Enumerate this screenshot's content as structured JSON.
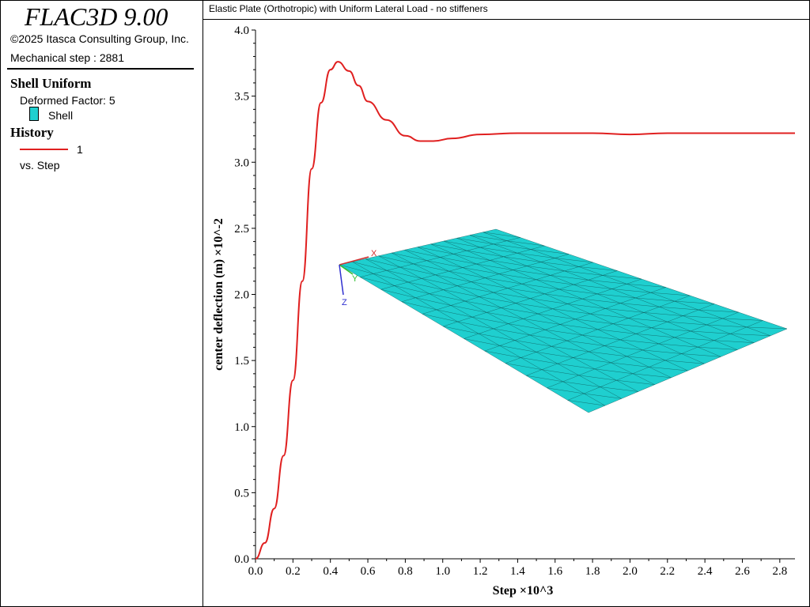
{
  "app": {
    "title": "FLAC3D 9.00",
    "copyright": "©2025 Itasca Consulting Group, Inc.",
    "step_text": "Mechanical step : 2881"
  },
  "legend": {
    "shell_section": "Shell Uniform",
    "deformed_factor": "Deformed Factor: 5",
    "shell_label": "Shell",
    "history_section": "History",
    "history_item": "1",
    "vs_label": "vs. Step"
  },
  "plot": {
    "title": "Elastic Plate (Orthotropic) with Uniform Lateral Load - no stiffeners",
    "model_color": "#1fcfcf",
    "axes_triad": {
      "x": "X",
      "y": "Y",
      "z": "Z"
    }
  },
  "chart_data": {
    "type": "line",
    "xlabel": "Step ×10^3",
    "ylabel": "center deflection (m) ×10^-2",
    "xlim": [
      0,
      2.881
    ],
    "ylim": [
      0,
      4.0
    ],
    "xticks": [
      "0.0",
      "0.2",
      "0.4",
      "0.6",
      "0.8",
      "1.0",
      "1.2",
      "1.4",
      "1.6",
      "1.8",
      "2.0",
      "2.2",
      "2.4",
      "2.6",
      "2.8"
    ],
    "yticks": [
      "0.0",
      "0.5",
      "1.0",
      "1.5",
      "2.0",
      "2.5",
      "3.0",
      "3.5",
      "4.0"
    ],
    "series": [
      {
        "name": "1",
        "color": "#e02020",
        "x": [
          0,
          0.05,
          0.1,
          0.15,
          0.2,
          0.25,
          0.3,
          0.35,
          0.4,
          0.44,
          0.5,
          0.55,
          0.6,
          0.7,
          0.8,
          0.88,
          0.95,
          1.05,
          1.2,
          1.4,
          1.6,
          1.8,
          2.0,
          2.2,
          2.5,
          2.881
        ],
        "y": [
          0,
          0.12,
          0.38,
          0.78,
          1.35,
          2.1,
          2.95,
          3.45,
          3.7,
          3.76,
          3.69,
          3.58,
          3.46,
          3.32,
          3.2,
          3.16,
          3.16,
          3.18,
          3.21,
          3.22,
          3.22,
          3.22,
          3.21,
          3.22,
          3.22,
          3.22
        ]
      }
    ]
  }
}
